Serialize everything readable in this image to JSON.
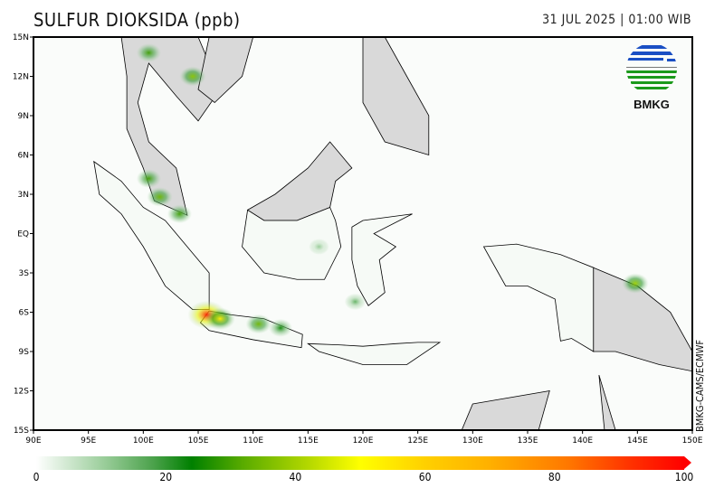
{
  "header": {
    "title": "SULFUR DIOKSIDA (ppb)",
    "datetime": "31 JUL 2025 | 01:00 WIB"
  },
  "logo": {
    "text": "BMKG",
    "colors": {
      "blue": "#1a4fc4",
      "green": "#1c9a1c"
    }
  },
  "credit": "BMKG-CAMS/ECMWF",
  "map": {
    "lon_range": [
      90,
      150
    ],
    "lat_range": [
      -15,
      15
    ],
    "lat_ticks": [
      "15N",
      "12N",
      "9N",
      "6N",
      "3N",
      "EQ",
      "3S",
      "6S",
      "9S",
      "12S",
      "15S"
    ],
    "lon_ticks": [
      "90E",
      "95E",
      "100E",
      "105E",
      "110E",
      "115E",
      "120E",
      "125E",
      "130E",
      "135E",
      "140E",
      "145E",
      "150E"
    ],
    "land_color": "#d9d9d9",
    "hotspots": [
      {
        "lon": 105.8,
        "lat": -6.2,
        "value": 95
      },
      {
        "lon": 107,
        "lat": -6.5,
        "value": 55
      },
      {
        "lon": 110.5,
        "lat": -6.9,
        "value": 35
      },
      {
        "lon": 112.5,
        "lat": -7.2,
        "value": 25
      },
      {
        "lon": 100.5,
        "lat": 4.2,
        "value": 30
      },
      {
        "lon": 101.5,
        "lat": 2.8,
        "value": 35
      },
      {
        "lon": 103.3,
        "lat": 1.5,
        "value": 30
      },
      {
        "lon": 100.5,
        "lat": 13.8,
        "value": 30
      },
      {
        "lon": 104.5,
        "lat": 12.0,
        "value": 38
      },
      {
        "lon": 144.8,
        "lat": -3.8,
        "value": 40
      },
      {
        "lon": 116,
        "lat": -1,
        "value": 10
      },
      {
        "lon": 119.3,
        "lat": -5.2,
        "value": 15
      }
    ]
  },
  "colorbar": {
    "min": 0,
    "max": 100,
    "labels": [
      "0",
      "20",
      "40",
      "60",
      "80",
      "100"
    ],
    "stops": [
      "#ffffff",
      "#008000",
      "#ffff00",
      "#ffb000",
      "#ff0000"
    ]
  }
}
